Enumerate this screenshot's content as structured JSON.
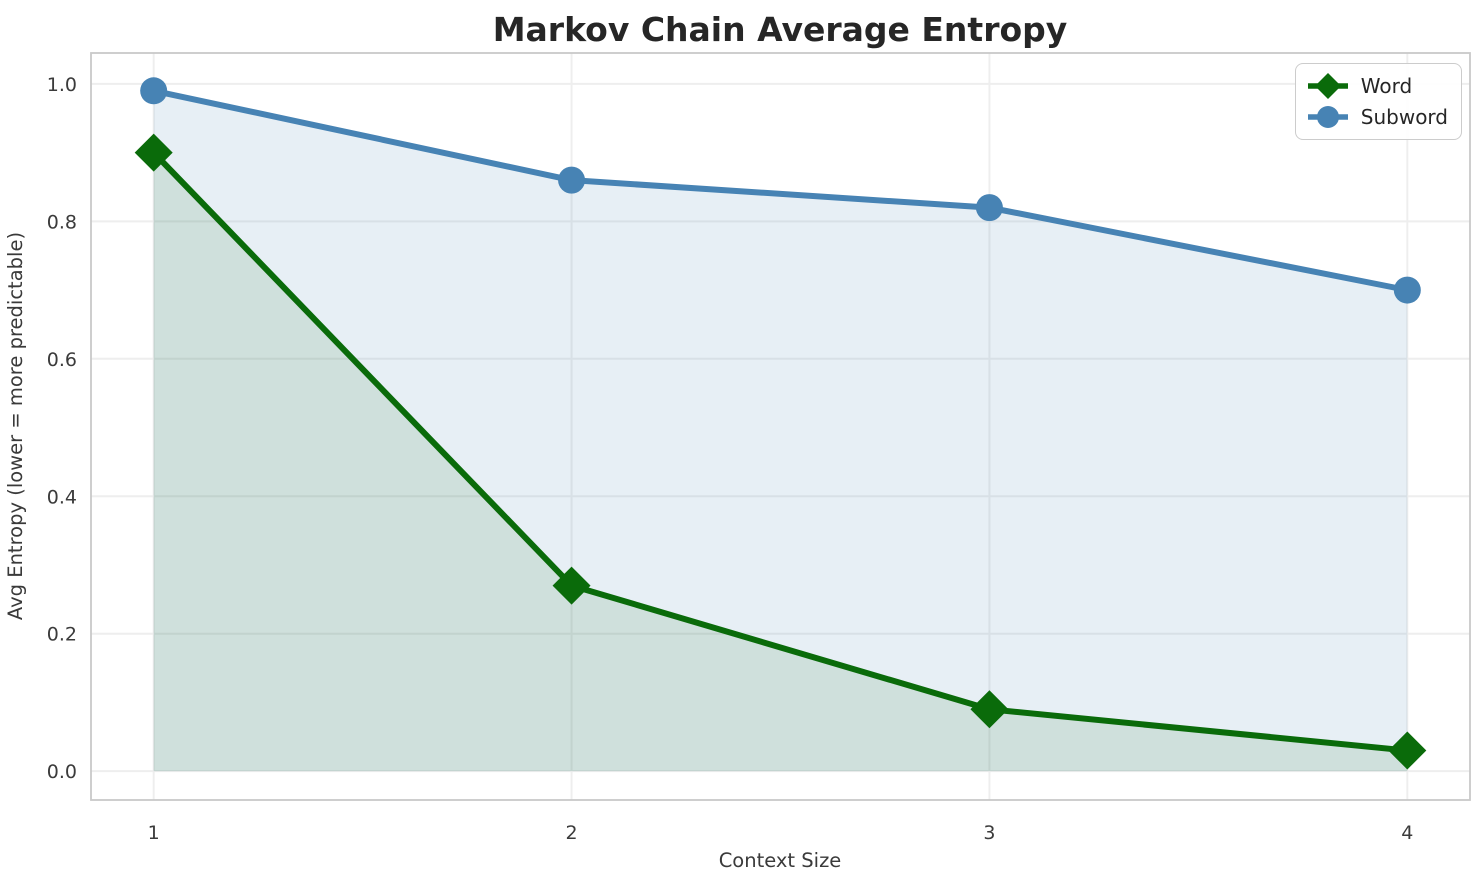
{
  "chart_data": {
    "type": "line",
    "title": "Markov Chain Average Entropy",
    "xlabel": "Context Size",
    "ylabel": "Avg Entropy (lower = more predictable)",
    "x": [
      1,
      2,
      3,
      4
    ],
    "series": [
      {
        "name": "Word",
        "values": [
          0.9,
          0.27,
          0.09,
          0.03
        ],
        "color": "#0a6b0a",
        "marker": "diamond",
        "area_fill": "rgba(0,100,0,0.10)"
      },
      {
        "name": "Subword",
        "values": [
          0.99,
          0.86,
          0.82,
          0.7
        ],
        "color": "#4783b4",
        "marker": "circle",
        "area_fill": "rgba(70,130,180,0.13)"
      }
    ],
    "xtick_labels": [
      "1",
      "2",
      "3",
      "4"
    ],
    "xticks": [
      1,
      2,
      3,
      4
    ],
    "ytick_labels": [
      "0.0",
      "0.2",
      "0.4",
      "0.6",
      "0.8",
      "1.0"
    ],
    "yticks": [
      0.0,
      0.2,
      0.4,
      0.6,
      0.8,
      1.0
    ],
    "xlim": [
      0.85,
      4.15
    ],
    "ylim": [
      -0.042,
      1.045
    ],
    "grid": true,
    "legend_position": "upper right",
    "area_fill_to": 0
  }
}
